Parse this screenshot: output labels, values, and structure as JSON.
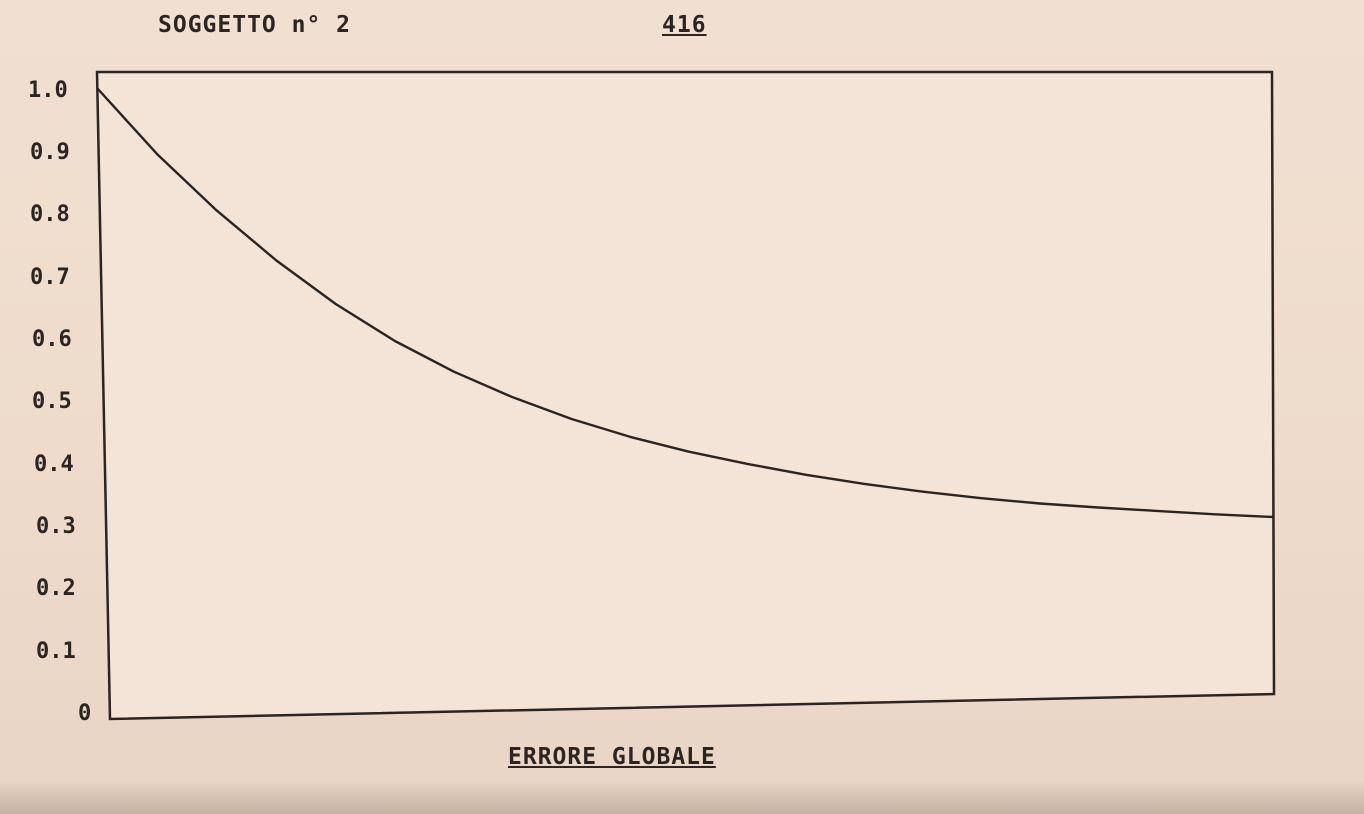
{
  "header": {
    "subject": "SOGGETTO n° 2",
    "page_number": "416"
  },
  "chart_data": {
    "type": "line",
    "title": "",
    "xlabel": "ERRORE GLOBALE",
    "ylabel": "",
    "ylim": [
      0,
      1.0
    ],
    "xlim": [
      0,
      1
    ],
    "yticks": [
      "0",
      "0.1",
      "0.2",
      "0.3",
      "0.4",
      "0.5",
      "0.6",
      "0.7",
      "0.8",
      "0.9",
      "1.0"
    ],
    "grid": false,
    "series": [
      {
        "x": [
          0.0,
          0.05,
          0.1,
          0.15,
          0.2,
          0.25,
          0.3,
          0.35,
          0.4,
          0.45,
          0.5,
          0.55,
          0.6,
          0.65,
          0.7,
          0.75,
          0.8,
          0.85,
          0.9,
          0.95,
          1.0
        ],
        "y": [
          1.0,
          0.895,
          0.805,
          0.725,
          0.655,
          0.595,
          0.545,
          0.503,
          0.467,
          0.437,
          0.412,
          0.391,
          0.372,
          0.356,
          0.342,
          0.33,
          0.32,
          0.312,
          0.305,
          0.298,
          0.292
        ],
        "color": "#2b2420"
      }
    ]
  }
}
